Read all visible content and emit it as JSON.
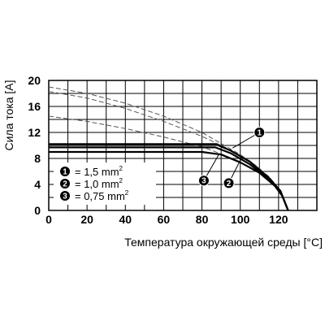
{
  "chart_data": {
    "type": "line",
    "title": "",
    "xlabel": "Температура окружающей среды [°C]",
    "ylabel": "Сила тока [A]",
    "xlim": [
      0,
      140
    ],
    "ylim": [
      0,
      20
    ],
    "x_ticks": [
      "0",
      "20",
      "40",
      "60",
      "80",
      "100",
      "120"
    ],
    "y_ticks": [
      "0",
      "4",
      "8",
      "12",
      "16",
      "20"
    ],
    "grid": true,
    "series": [
      {
        "name": "1,5 mm²",
        "marker": "1",
        "style": "solid",
        "points": [
          [
            0,
            10.2
          ],
          [
            87,
            10.2
          ],
          [
            95,
            9.2
          ],
          [
            105,
            7.5
          ],
          [
            115,
            5
          ],
          [
            121,
            3
          ],
          [
            125,
            0
          ]
        ]
      },
      {
        "name": "1,0 mm²",
        "marker": "2",
        "style": "solid",
        "points": [
          [
            0,
            9.7
          ],
          [
            87,
            9.7
          ],
          [
            95,
            8.8
          ],
          [
            105,
            7.1
          ],
          [
            115,
            4.8
          ],
          [
            121,
            2.9
          ],
          [
            125,
            0
          ]
        ]
      },
      {
        "name": "0,75 mm²",
        "marker": "3",
        "style": "solid",
        "points": [
          [
            0,
            9.0
          ],
          [
            80,
            9.0
          ],
          [
            90,
            8.6
          ],
          [
            100,
            7.4
          ],
          [
            110,
            5.8
          ],
          [
            118,
            3.8
          ],
          [
            122,
            2.2
          ],
          [
            125,
            0
          ]
        ]
      },
      {
        "name": "",
        "style": "dashed",
        "points": [
          [
            0,
            19.0
          ],
          [
            20,
            18.0
          ],
          [
            40,
            16.5
          ],
          [
            60,
            14.5
          ],
          [
            80,
            12.0
          ],
          [
            90,
            10.3
          ],
          [
            100,
            8.6
          ],
          [
            110,
            6.5
          ],
          [
            120,
            3.0
          ]
        ]
      },
      {
        "name": "",
        "style": "dashed",
        "points": [
          [
            0,
            18.3
          ],
          [
            20,
            17.3
          ],
          [
            40,
            15.7
          ],
          [
            60,
            13.7
          ],
          [
            80,
            11.4
          ],
          [
            95,
            9.3
          ],
          [
            105,
            7.6
          ],
          [
            115,
            5.2
          ],
          [
            121,
            3.0
          ]
        ]
      },
      {
        "name": "",
        "style": "dashed",
        "points": [
          [
            0,
            14.5
          ],
          [
            20,
            13.7
          ],
          [
            40,
            12.6
          ],
          [
            60,
            11.3
          ],
          [
            80,
            9.8
          ],
          [
            90,
            8.7
          ],
          [
            100,
            7.4
          ],
          [
            110,
            5.8
          ],
          [
            118,
            3.8
          ]
        ]
      }
    ],
    "legend": {
      "placement": "bottom-left",
      "entries": [
        {
          "marker": "1",
          "text": "= 1,5 mm",
          "sup": "2"
        },
        {
          "marker": "2",
          "text": "= 1,0 mm",
          "sup": "2"
        },
        {
          "marker": "3",
          "text": "= 0,75 mm",
          "sup": "2"
        }
      ]
    },
    "annotations": [
      {
        "marker": "1",
        "x": 110,
        "y": 12.0
      },
      {
        "marker": "2",
        "x": 94,
        "y": 4.2
      },
      {
        "marker": "3",
        "x": 81,
        "y": 4.6
      }
    ]
  }
}
